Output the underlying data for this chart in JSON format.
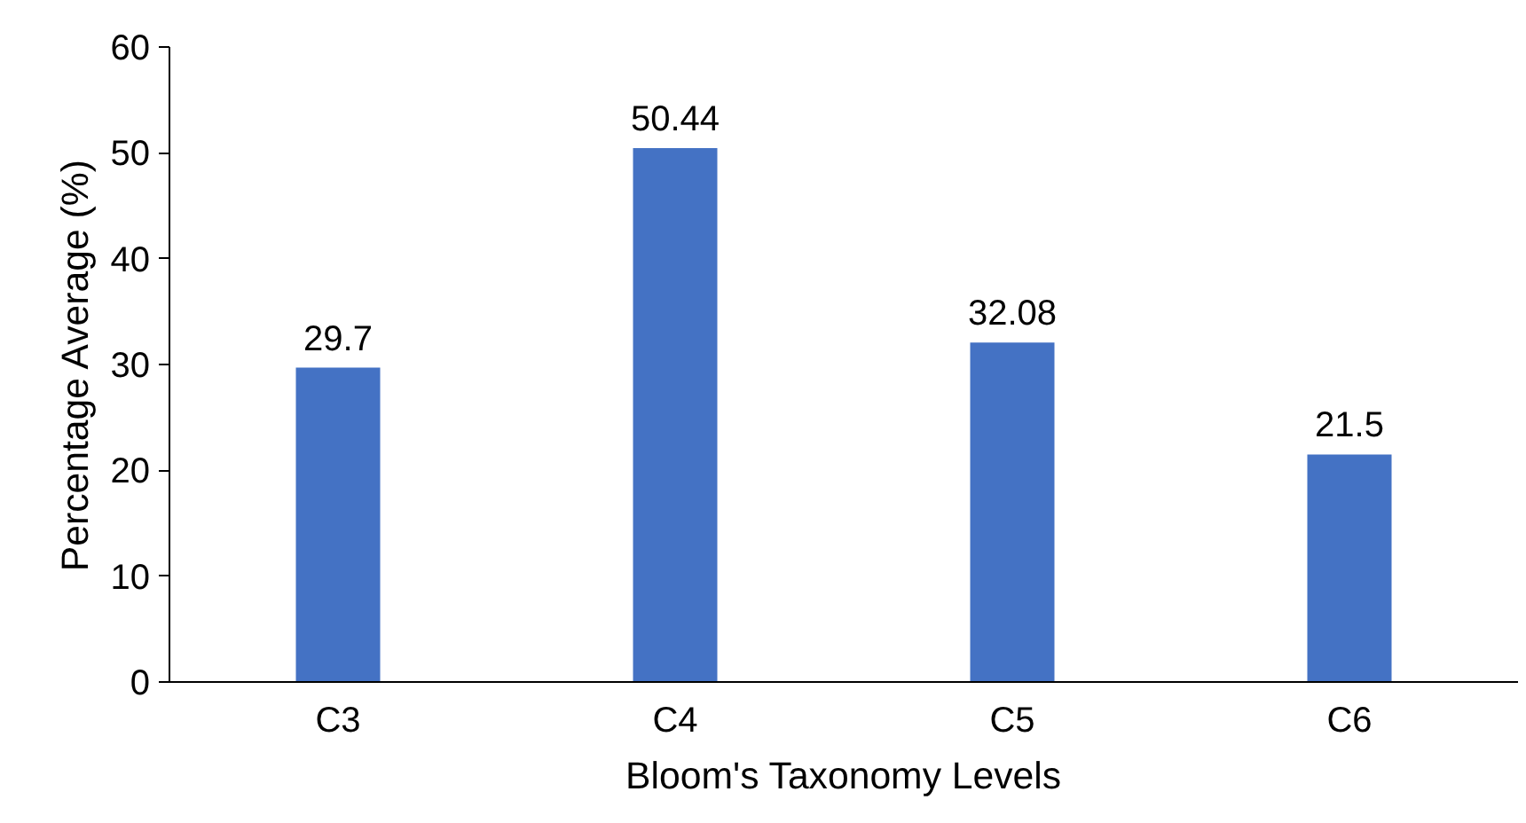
{
  "chart_data": {
    "type": "bar",
    "xlabel": "Bloom's Taxonomy Levels",
    "ylabel": "Percentage Average (%)",
    "categories": [
      "C3",
      "C4",
      "C5",
      "C6"
    ],
    "values": [
      29.7,
      50.44,
      32.08,
      21.5
    ],
    "color": "#4472c4",
    "ylim": [
      0,
      60
    ],
    "yticks": [
      0,
      10,
      20,
      30,
      40,
      50,
      60
    ],
    "data_labels": true
  }
}
